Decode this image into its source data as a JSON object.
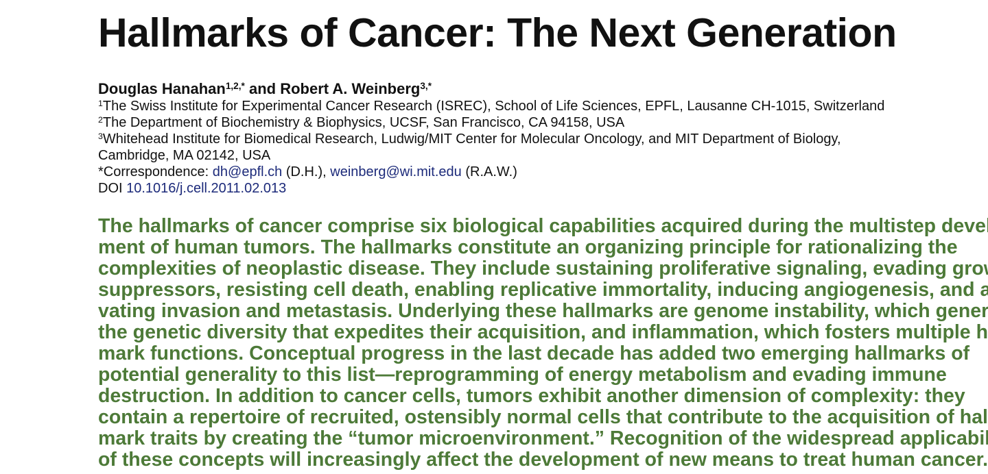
{
  "header": {
    "title": "Hallmarks of Cancer: The Next Generation"
  },
  "authors": [
    {
      "name": "Douglas Hanahan",
      "marks": "1,2,*"
    },
    {
      "name": "Robert A. Weinberg",
      "marks": "3,*"
    }
  ],
  "author_joiner": "and",
  "affiliations": [
    {
      "mark": "1",
      "text": "The Swiss Institute for Experimental Cancer Research (ISREC), School of Life Sciences, EPFL, Lausanne CH-1015, Switzerland"
    },
    {
      "mark": "2",
      "text": "The Department of Biochemistry & Biophysics, UCSF, San Francisco, CA 94158, USA"
    },
    {
      "mark": "3",
      "text": "Whitehead Institute for Biomedical Research, Ludwig/MIT Center for Molecular Oncology, and MIT Department of Biology, Cambridge, MA 02142, USA"
    }
  ],
  "correspondence": {
    "label": "*Correspondence:",
    "emails": [
      {
        "address": "dh@epfl.ch",
        "initials": "(D.H.),"
      },
      {
        "address": "weinberg@wi.mit.edu",
        "initials": "(R.A.W.)"
      }
    ]
  },
  "doi": {
    "label": "DOI",
    "link": "10.1016/j.cell.2011.02.013"
  },
  "abstract": {
    "lines": [
      "The hallmarks of cancer comprise six biological capabilities acquired during the multistep develop-",
      "ment of human tumors. The hallmarks constitute an organizing principle for rationalizing the",
      "complexities of neoplastic disease. They include sustaining proliferative signaling, evading growth",
      "suppressors, resisting cell death, enabling replicative immortality, inducing angiogenesis, and acti-",
      "vating invasion and metastasis. Underlying these hallmarks are genome instability, which generates",
      "the genetic diversity that expedites their acquisition, and inflammation, which fosters multiple hall-",
      "mark functions. Conceptual progress in the last decade has added two emerging hallmarks of",
      "potential generality to this list—reprogramming of energy metabolism and evading immune",
      "destruction. In addition to cancer cells, tumors exhibit another dimension of complexity: they",
      "contain a repertoire of recruited, ostensibly normal cells that contribute to the acquisition of hall-",
      "mark traits by creating the “tumor microenvironment.” Recognition of the widespread applicability",
      "of these concepts will increasingly affect the development of new means to treat human cancer."
    ]
  }
}
